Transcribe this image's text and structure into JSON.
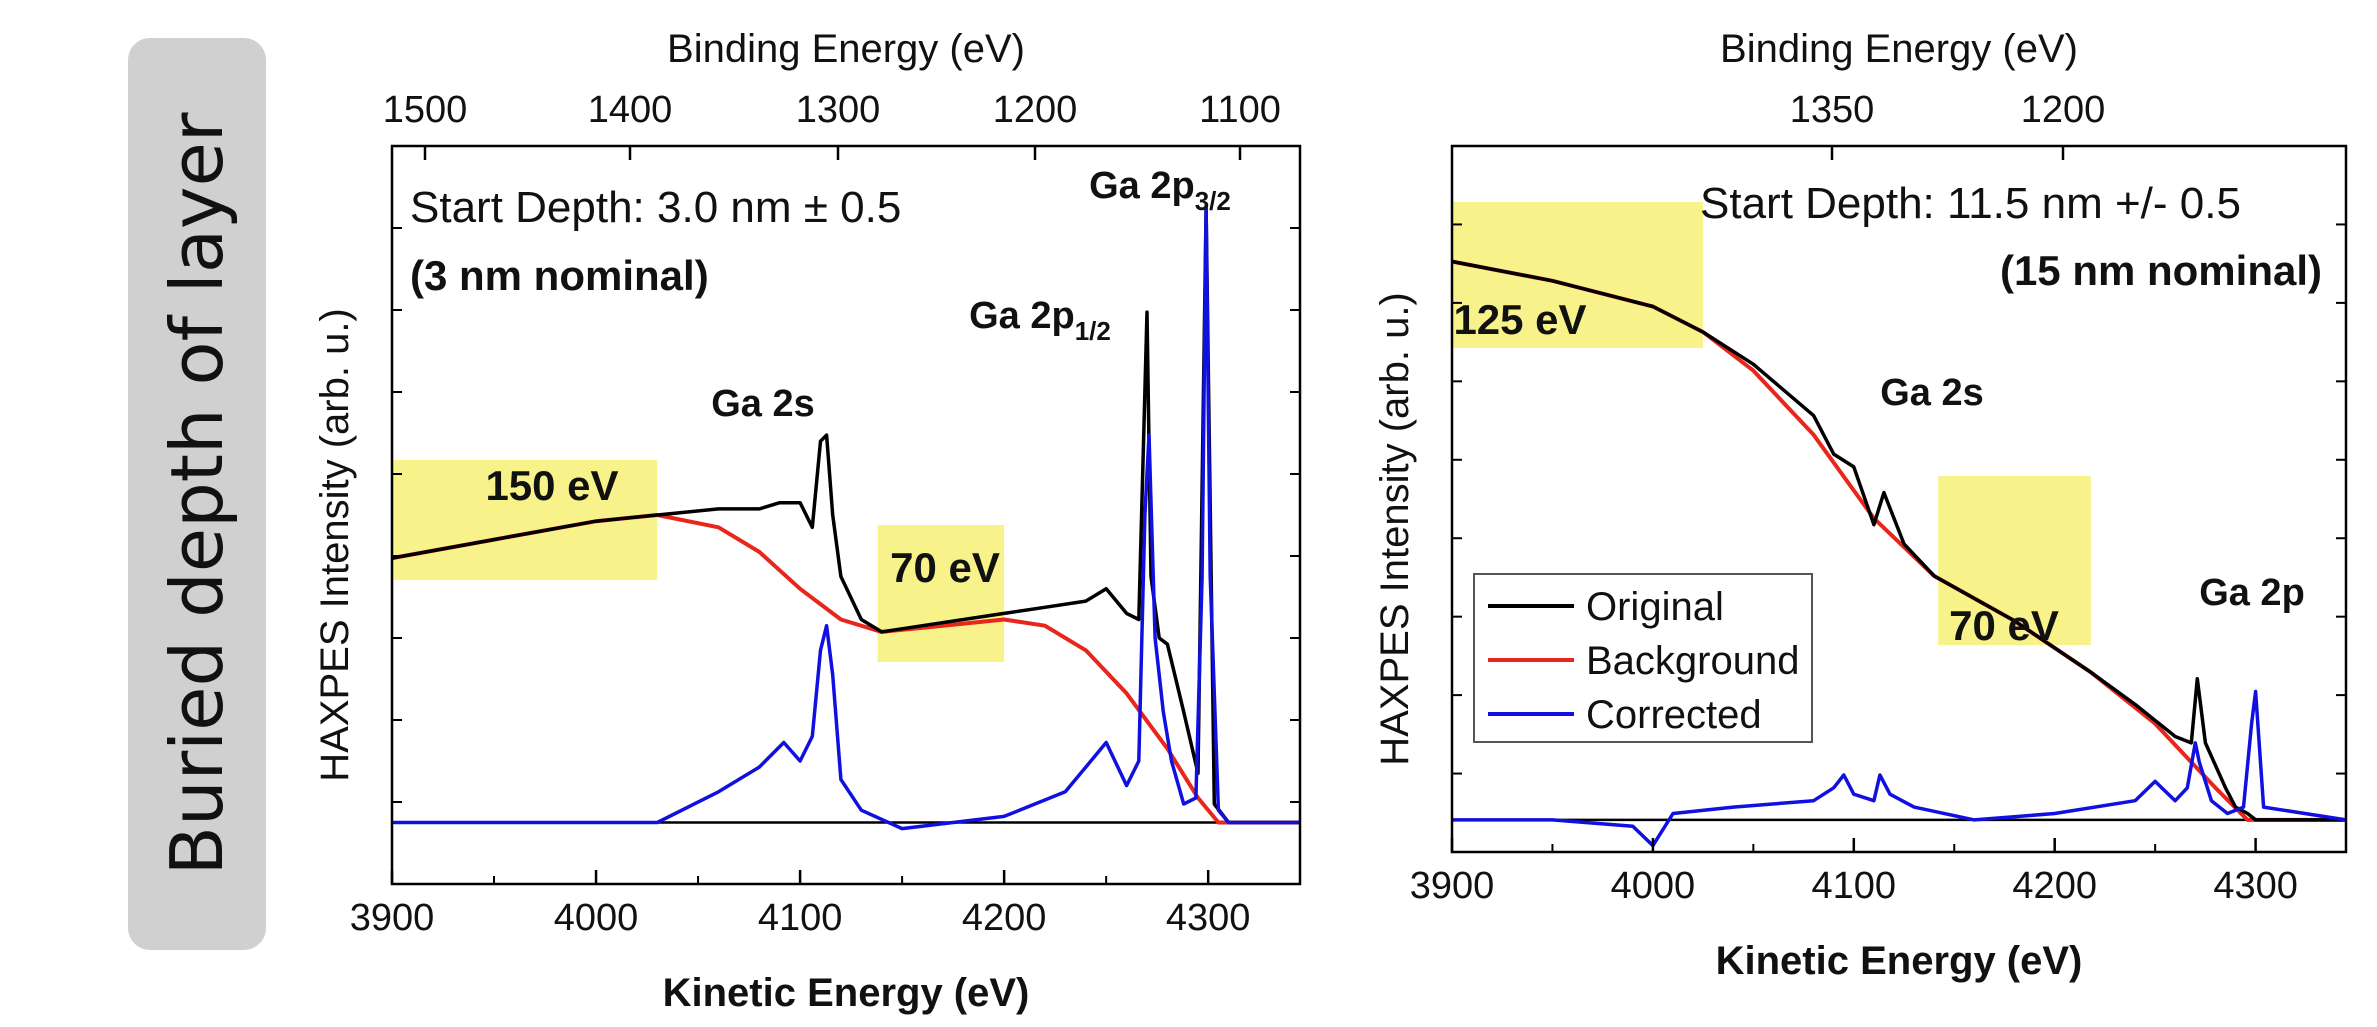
{
  "side_label": "Buried depth of layer",
  "colors": {
    "original": "#000000",
    "background": "#e8261c",
    "corrected": "#1010e0",
    "highlight": "#f8f28a",
    "side_panel": "#d0d0d0"
  },
  "chart_data": [
    {
      "type": "line",
      "top_axis_label": "Binding Energy (eV)",
      "top_ticks": [
        "1500",
        "1400",
        "1300",
        "1200",
        "1100"
      ],
      "xlabel": "Kinetic Energy (eV)",
      "ylabel": "HAXPES Intensity (arb. u.)",
      "x_ticks": [
        "3900",
        "4000",
        "4100",
        "4200",
        "4300"
      ],
      "xlim": [
        3900,
        4345
      ],
      "ylim": [
        -0.1,
        1.1
      ],
      "grid": false,
      "annotation_line1": "Start Depth: 3.0 nm ± 0.5",
      "annotation_line2": "(3 nm nominal)",
      "regions": [
        {
          "label": "150 eV",
          "x": [
            3900,
            4030
          ]
        },
        {
          "label": "70 eV",
          "x": [
            4138,
            4200
          ]
        }
      ],
      "peaks": [
        {
          "label": "Ga 2s",
          "x": 4113
        },
        {
          "label": "Ga 2p",
          "sub": "1/2",
          "x": 4271
        },
        {
          "label": "Ga 2p",
          "sub": "3/2",
          "x": 4299
        }
      ],
      "series": [
        {
          "name": "Original",
          "x": [
            3900,
            3950,
            4000,
            4030,
            4060,
            4080,
            4090,
            4100,
            4106,
            4110,
            4113,
            4116,
            4120,
            4130,
            4140,
            4160,
            4200,
            4220,
            4240,
            4250,
            4260,
            4266,
            4270,
            4272,
            4276,
            4280,
            4288,
            4295,
            4299,
            4303,
            4310,
            4320,
            4345
          ],
          "y": [
            0.43,
            0.46,
            0.49,
            0.5,
            0.51,
            0.51,
            0.52,
            0.52,
            0.48,
            0.62,
            0.63,
            0.5,
            0.4,
            0.33,
            0.31,
            0.32,
            0.34,
            0.35,
            0.36,
            0.38,
            0.34,
            0.33,
            0.83,
            0.4,
            0.3,
            0.29,
            0.18,
            0.08,
            1.0,
            0.03,
            0.0,
            0.0,
            0.0
          ]
        },
        {
          "name": "Background",
          "x": [
            3900,
            3950,
            4000,
            4030,
            4060,
            4080,
            4100,
            4120,
            4140,
            4170,
            4200,
            4220,
            4240,
            4260,
            4280,
            4295,
            4305,
            4345
          ],
          "y": [
            0.43,
            0.46,
            0.49,
            0.5,
            0.48,
            0.44,
            0.38,
            0.33,
            0.31,
            0.32,
            0.33,
            0.32,
            0.28,
            0.21,
            0.12,
            0.04,
            0.0,
            0.0
          ]
        },
        {
          "name": "Corrected",
          "x": [
            3900,
            4000,
            4030,
            4060,
            4080,
            4092,
            4100,
            4106,
            4110,
            4113,
            4116,
            4120,
            4130,
            4150,
            4200,
            4230,
            4250,
            4260,
            4266,
            4269,
            4271,
            4274,
            4278,
            4282,
            4288,
            4294,
            4297,
            4299,
            4301,
            4305,
            4310,
            4320,
            4345
          ],
          "y": [
            0.0,
            0.0,
            0.0,
            0.05,
            0.09,
            0.13,
            0.1,
            0.14,
            0.28,
            0.32,
            0.24,
            0.07,
            0.02,
            -0.01,
            0.01,
            0.05,
            0.13,
            0.06,
            0.1,
            0.5,
            0.63,
            0.3,
            0.18,
            0.1,
            0.03,
            0.04,
            0.4,
            1.0,
            0.4,
            0.02,
            0.0,
            0.0,
            0.0
          ]
        }
      ]
    },
    {
      "type": "line",
      "top_axis_label": "Binding Energy (eV)",
      "top_ticks": [
        "1350",
        "1200"
      ],
      "xlabel": "Kinetic Energy (eV)",
      "ylabel": "HAXPES Intensity (arb. u.)",
      "x_ticks": [
        "3900",
        "4000",
        "4100",
        "4200",
        "4300"
      ],
      "xlim": [
        3900,
        4345
      ],
      "ylim": [
        -0.05,
        1.05
      ],
      "grid": false,
      "annotation_line1": "Start Depth: 11.5 nm +/- 0.5",
      "annotation_line2": "(15 nm nominal)",
      "regions": [
        {
          "label": "125 eV",
          "x": [
            3900,
            4025
          ]
        },
        {
          "label": "70 eV",
          "x": [
            4142,
            4218
          ]
        }
      ],
      "peaks": [
        {
          "label": "Ga 2s",
          "x": 4113
        },
        {
          "label": "Ga 2p",
          "x": 4300
        }
      ],
      "legend": [
        "Original",
        "Background",
        "Corrected"
      ],
      "legend_position": "bottom-left",
      "series": [
        {
          "name": "Original",
          "x": [
            3900,
            3950,
            4000,
            4025,
            4050,
            4080,
            4090,
            4100,
            4110,
            4115,
            4125,
            4140,
            4180,
            4218,
            4240,
            4260,
            4268,
            4271,
            4275,
            4285,
            4290,
            4296,
            4300,
            4345
          ],
          "y": [
            0.87,
            0.84,
            0.8,
            0.76,
            0.71,
            0.63,
            0.57,
            0.55,
            0.46,
            0.51,
            0.43,
            0.38,
            0.31,
            0.23,
            0.18,
            0.13,
            0.12,
            0.22,
            0.12,
            0.05,
            0.02,
            0.01,
            0.0,
            0.0
          ]
        },
        {
          "name": "Background",
          "x": [
            3900,
            3950,
            4000,
            4025,
            4050,
            4080,
            4110,
            4140,
            4180,
            4218,
            4250,
            4280,
            4296,
            4345
          ],
          "y": [
            0.87,
            0.84,
            0.8,
            0.76,
            0.7,
            0.6,
            0.47,
            0.38,
            0.31,
            0.23,
            0.15,
            0.05,
            0.0,
            0.0
          ]
        },
        {
          "name": "Corrected",
          "x": [
            3900,
            3950,
            3990,
            4000,
            4010,
            4040,
            4080,
            4090,
            4095,
            4100,
            4110,
            4113,
            4118,
            4130,
            4160,
            4200,
            4240,
            4250,
            4260,
            4266,
            4270,
            4272,
            4278,
            4286,
            4294,
            4298,
            4300,
            4304,
            4345
          ],
          "y": [
            0.0,
            0.0,
            -0.01,
            -0.04,
            0.01,
            0.02,
            0.03,
            0.05,
            0.07,
            0.04,
            0.03,
            0.07,
            0.04,
            0.02,
            0.0,
            0.01,
            0.03,
            0.06,
            0.03,
            0.05,
            0.12,
            0.09,
            0.03,
            0.01,
            0.02,
            0.15,
            0.2,
            0.02,
            0.0
          ]
        }
      ]
    }
  ]
}
